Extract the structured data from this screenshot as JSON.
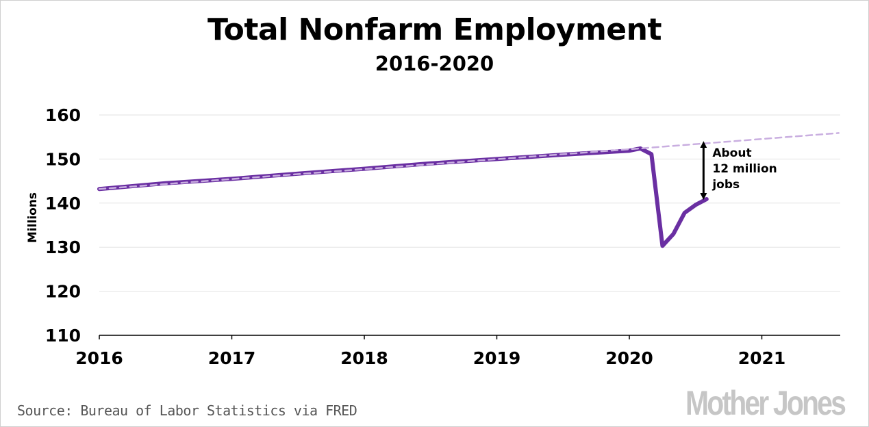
{
  "header": {
    "title": "Total Nonfarm Employment",
    "subtitle": "2016-2020"
  },
  "footer": {
    "source": "Source: Bureau of Labor Statistics via FRED",
    "logo": "Mother Jones"
  },
  "colors": {
    "actual_line": "#6a2fa2",
    "trend_line": "#c9aee0",
    "grid": "#e2e2e2",
    "axis": "#000000",
    "logo": "#c6c6c6"
  },
  "chart_data": {
    "type": "line",
    "title": "Total Nonfarm Employment",
    "subtitle": "2016-2020",
    "xlabel": "",
    "ylabel": "Millions",
    "xlim": [
      2016,
      2021.58
    ],
    "ylim": [
      110,
      160
    ],
    "xticks": [
      "2016",
      "2017",
      "2018",
      "2019",
      "2020",
      "2021"
    ],
    "yticks": [
      "110",
      "120",
      "130",
      "140",
      "150",
      "160"
    ],
    "grid": true,
    "series": [
      {
        "style": "solid",
        "x": [
          2016.0,
          2016.5,
          2017.0,
          2017.5,
          2018.0,
          2018.5,
          2019.0,
          2019.5,
          2020.0,
          2020.083,
          2020.167,
          2020.25,
          2020.333,
          2020.417,
          2020.5,
          2020.583
        ],
        "y": [
          143.2,
          144.5,
          145.5,
          146.7,
          147.8,
          149.0,
          150.0,
          151.0,
          151.9,
          152.4,
          151.1,
          130.3,
          133.0,
          137.8,
          139.6,
          140.9
        ]
      },
      {
        "style": "dashed",
        "x": [
          2016.0,
          2020.083,
          2021.58
        ],
        "y": [
          143.2,
          152.4,
          155.9
        ]
      }
    ],
    "annotations": [
      {
        "text": [
          "About",
          "12 million",
          "jobs"
        ],
        "x": 2020.56,
        "y_from": 153.6,
        "y_to": 140.9
      }
    ]
  }
}
